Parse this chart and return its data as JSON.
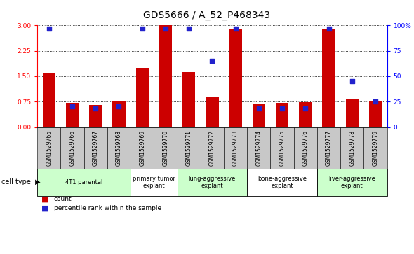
{
  "title": "GDS5666 / A_52_P468343",
  "samples": [
    "GSM1529765",
    "GSM1529766",
    "GSM1529767",
    "GSM1529768",
    "GSM1529769",
    "GSM1529770",
    "GSM1529771",
    "GSM1529772",
    "GSM1529773",
    "GSM1529774",
    "GSM1529775",
    "GSM1529776",
    "GSM1529777",
    "GSM1529778",
    "GSM1529779"
  ],
  "bar_values": [
    1.6,
    0.72,
    0.65,
    0.76,
    1.75,
    3.0,
    1.62,
    0.88,
    2.9,
    0.7,
    0.72,
    0.74,
    2.9,
    0.84,
    0.78
  ],
  "dot_values": [
    97,
    20,
    18,
    20,
    97,
    97,
    97,
    65,
    97,
    18,
    18,
    18,
    97,
    45,
    25
  ],
  "cell_types": [
    {
      "label": "4T1 parental",
      "start": 0,
      "end": 4,
      "color": "#ccffcc"
    },
    {
      "label": "primary tumor\nexplant",
      "start": 4,
      "end": 6,
      "color": "#ffffff"
    },
    {
      "label": "lung-aggressive\nexplant",
      "start": 6,
      "end": 9,
      "color": "#ccffcc"
    },
    {
      "label": "bone-aggressive\nexplant",
      "start": 9,
      "end": 12,
      "color": "#ffffff"
    },
    {
      "label": "liver-aggressive\nexplant",
      "start": 12,
      "end": 15,
      "color": "#ccffcc"
    }
  ],
  "bar_color": "#cc0000",
  "dot_color": "#2222cc",
  "ylim_left": [
    0,
    3.0
  ],
  "ylim_right": [
    0,
    100
  ],
  "yticks_left": [
    0,
    0.75,
    1.5,
    2.25,
    3.0
  ],
  "yticks_right": [
    0,
    25,
    50,
    75,
    100
  ],
  "bar_width": 0.55,
  "title_fontsize": 10,
  "tick_fontsize": 6.5,
  "sample_box_color": "#c8c8c8"
}
